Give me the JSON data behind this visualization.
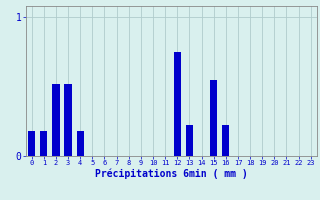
{
  "categories": [
    0,
    1,
    2,
    3,
    4,
    5,
    6,
    7,
    8,
    9,
    10,
    11,
    12,
    13,
    14,
    15,
    16,
    17,
    18,
    19,
    20,
    21,
    22,
    23
  ],
  "values": [
    0.18,
    0.18,
    0.52,
    0.52,
    0.18,
    0.0,
    0.0,
    0.0,
    0.0,
    0.0,
    0.0,
    0.0,
    0.75,
    0.22,
    0.0,
    0.55,
    0.22,
    0.0,
    0.0,
    0.0,
    0.0,
    0.0,
    0.0,
    0.0
  ],
  "bar_color": "#0000cc",
  "bg_color": "#d9f0ee",
  "grid_color": "#b0cccc",
  "axis_color": "#888888",
  "text_color": "#0000cc",
  "xlabel": "Précipitations 6min ( mm )",
  "ylim": [
    0,
    1.08
  ],
  "xlim": [
    -0.5,
    23.5
  ],
  "bar_width": 0.6,
  "xlabel_fontsize": 7,
  "tick_fontsize": 5,
  "ytick_fontsize": 7
}
